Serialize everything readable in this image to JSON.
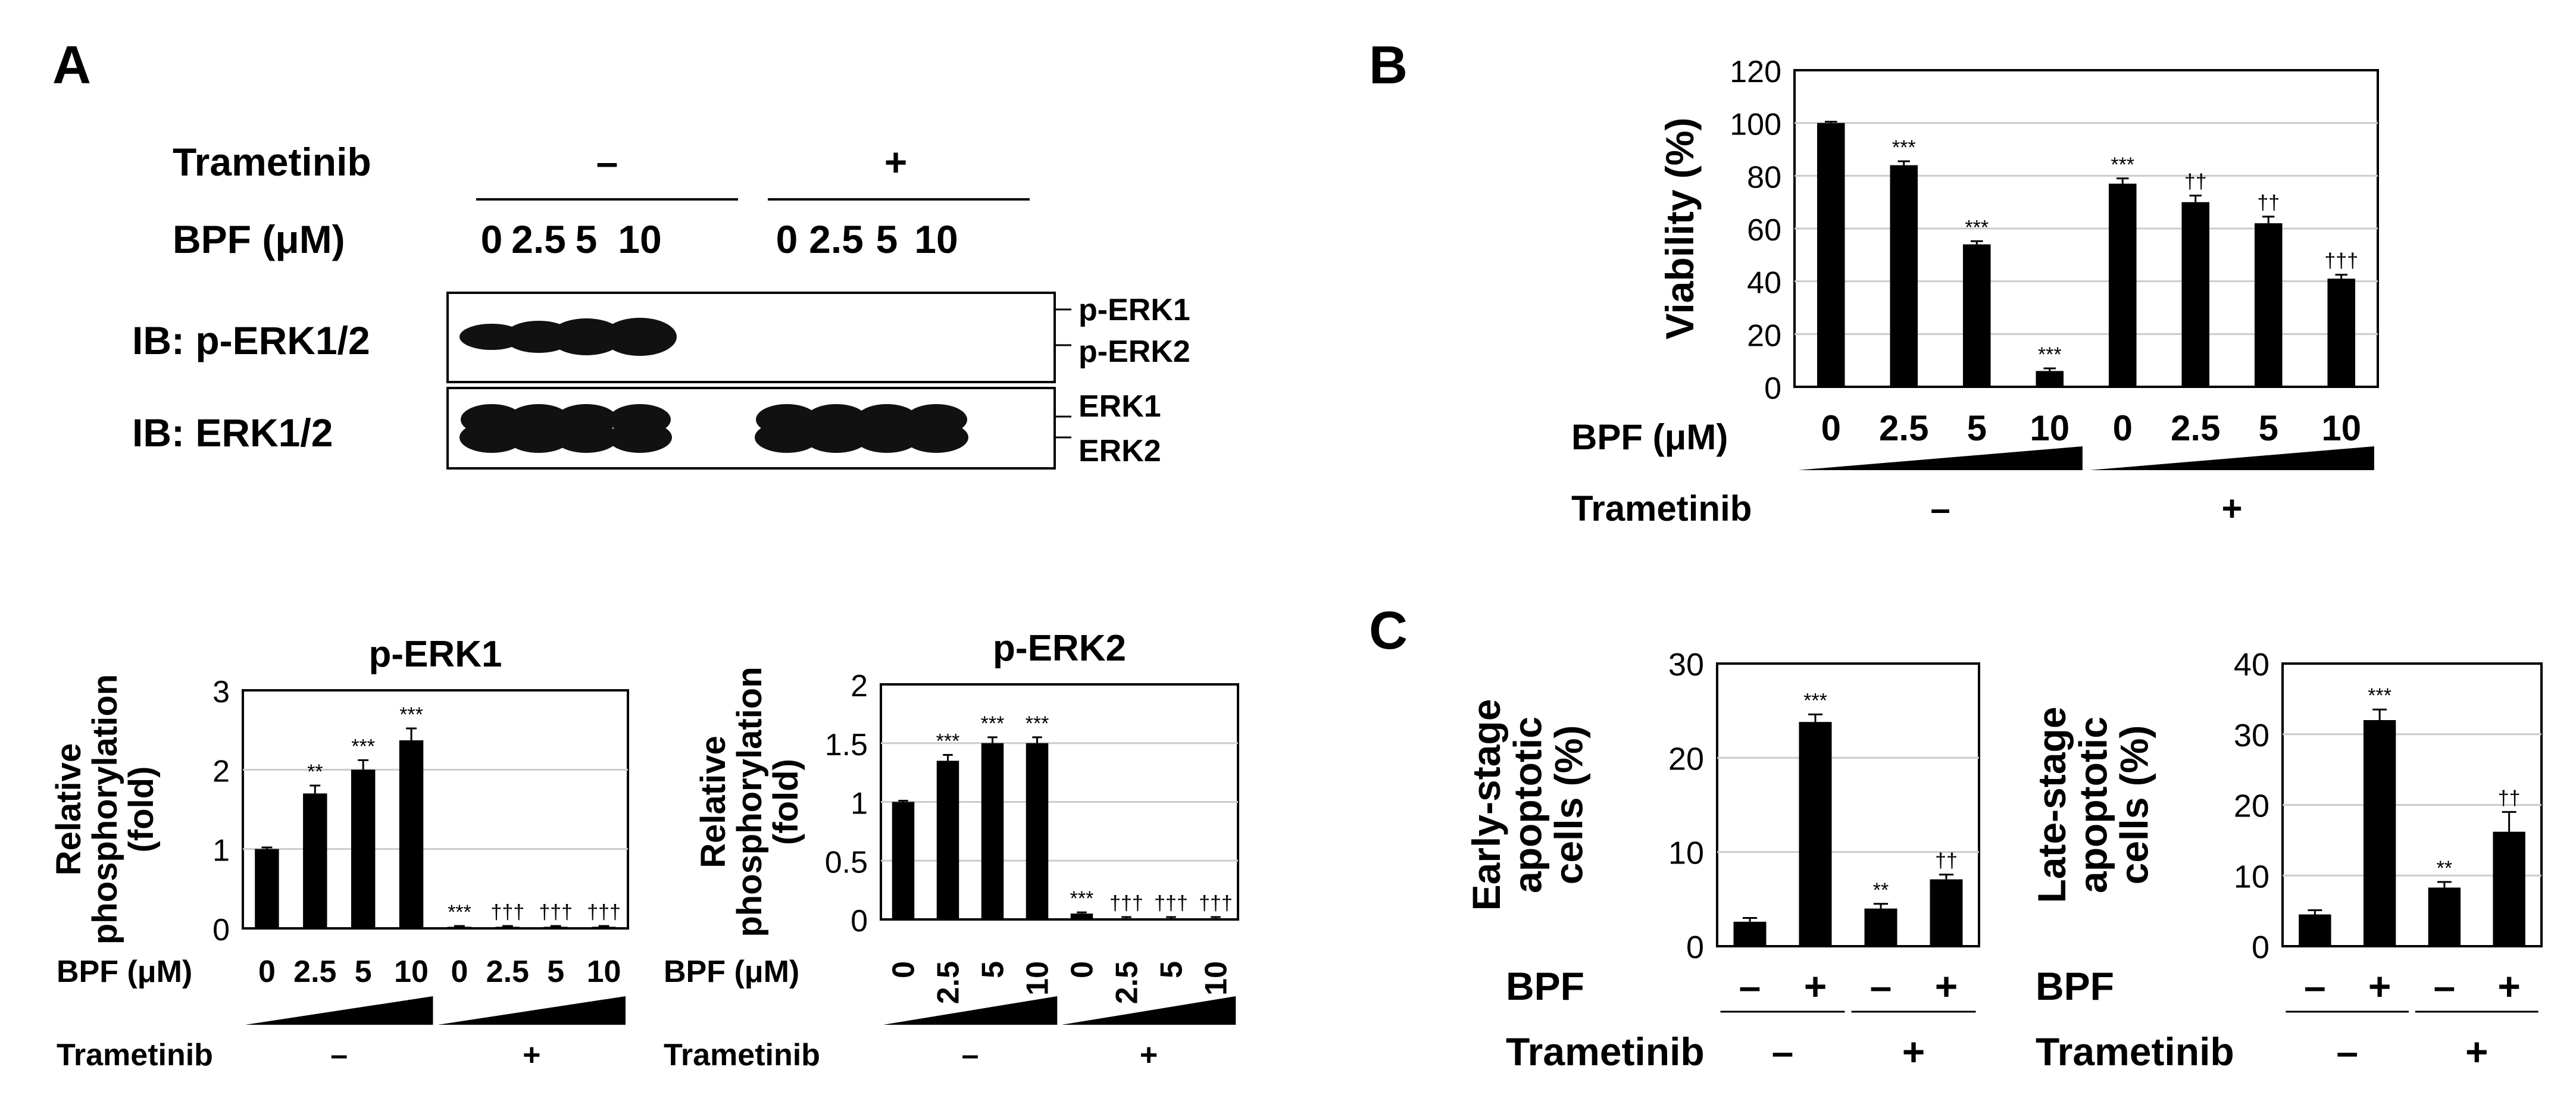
{
  "panels": {
    "A": "A",
    "B": "B",
    "C": "C"
  },
  "blot": {
    "trametinib_label": "Trametinib",
    "trametinib_minus": "–",
    "trametinib_plus": "+",
    "bpf_label": "BPF (μM)",
    "doses": [
      "0",
      "2.5",
      "5",
      "10",
      "0",
      "2.5",
      "5",
      "10"
    ],
    "row1_label": "IB: p-ERK1/2",
    "row2_label": "IB: ERK1/2",
    "row1_bands": [
      "p-ERK1",
      "p-ERK2"
    ],
    "row2_bands": [
      "ERK1",
      "ERK2"
    ]
  },
  "chart_data": [
    {
      "id": "A-pERK1",
      "type": "bar",
      "title": "p-ERK1",
      "ylabel": "Relative phosphorylation (fold)",
      "xlabel": "BPF (μM)",
      "group_label": "Trametinib",
      "groups": [
        "–",
        "+"
      ],
      "categories": [
        "0",
        "2.5",
        "5",
        "10",
        "0",
        "2.5",
        "5",
        "10"
      ],
      "values": [
        1.0,
        1.7,
        2.0,
        2.37,
        0.02,
        0.02,
        0.02,
        0.02
      ],
      "errors": [
        0.02,
        0.1,
        0.12,
        0.15,
        0.01,
        0.01,
        0.01,
        0.01
      ],
      "annotations": [
        "",
        "**",
        "***",
        "***",
        "***",
        "†††",
        "†††",
        "†††"
      ],
      "ylim": [
        0,
        3
      ],
      "yticks": [
        "0",
        "1",
        "2",
        "3"
      ]
    },
    {
      "id": "A-pERK2",
      "type": "bar",
      "title": "p-ERK2",
      "ylabel": "Relative phosphorylation (fold)",
      "xlabel": "BPF (μM)",
      "group_label": "Trametinib",
      "groups": [
        "–",
        "+"
      ],
      "categories": [
        "0",
        "2.5",
        "5",
        "10",
        "0",
        "2.5",
        "5",
        "10"
      ],
      "values": [
        1.0,
        1.35,
        1.5,
        1.5,
        0.05,
        0.01,
        0.01,
        0.01
      ],
      "errors": [
        0.01,
        0.05,
        0.05,
        0.05,
        0.01,
        0.01,
        0.01,
        0.01
      ],
      "annotations": [
        "",
        "***",
        "***",
        "***",
        "***",
        "†††",
        "†††",
        "†††"
      ],
      "ylim": [
        0,
        2
      ],
      "yticks": [
        "0",
        "0.5",
        "1",
        "1.5",
        "2"
      ]
    },
    {
      "id": "B-viability",
      "type": "bar",
      "title": "",
      "ylabel": "Viability (%)",
      "xlabel": "BPF (μM)",
      "group_label": "Trametinib",
      "groups": [
        "–",
        "+"
      ],
      "categories": [
        "0",
        "2.5",
        "5",
        "10",
        "0",
        "2.5",
        "5",
        "10"
      ],
      "values": [
        100,
        84,
        54,
        6,
        77,
        70,
        62,
        41
      ],
      "errors": [
        0.5,
        1.5,
        1.2,
        1.0,
        2.0,
        2.5,
        2.5,
        1.5
      ],
      "annotations": [
        "",
        "***",
        "***",
        "***",
        "***",
        "††",
        "††",
        "†††"
      ],
      "ylim": [
        0,
        120
      ],
      "yticks": [
        "0",
        "20",
        "40",
        "60",
        "80",
        "100",
        "120"
      ]
    },
    {
      "id": "C-early",
      "type": "bar",
      "title": "",
      "ylabel": "Early-stage apoptotic cells (%)",
      "row1_label": "BPF",
      "row2_label": "Trametinib",
      "bpf": [
        "–",
        "+",
        "–",
        "+"
      ],
      "trametinib": [
        "–",
        "+"
      ],
      "values": [
        2.6,
        23.8,
        4.0,
        7.1
      ],
      "errors": [
        0.4,
        0.8,
        0.5,
        0.5
      ],
      "annotations": [
        "",
        "***",
        "**",
        "††"
      ],
      "ylim": [
        0,
        30
      ],
      "yticks": [
        "0",
        "10",
        "20",
        "30"
      ]
    },
    {
      "id": "C-late",
      "type": "bar",
      "title": "",
      "ylabel": "Late-stage apoptotic cells (%)",
      "row1_label": "BPF",
      "row2_label": "Trametinib",
      "bpf": [
        "–",
        "+",
        "–",
        "+"
      ],
      "trametinib": [
        "–",
        "+"
      ],
      "values": [
        4.5,
        32.0,
        8.3,
        16.2
      ],
      "errors": [
        0.6,
        1.5,
        0.8,
        2.8
      ],
      "annotations": [
        "",
        "***",
        "**",
        "††"
      ],
      "ylim": [
        0,
        40
      ],
      "yticks": [
        "0",
        "10",
        "20",
        "30",
        "40"
      ]
    }
  ]
}
